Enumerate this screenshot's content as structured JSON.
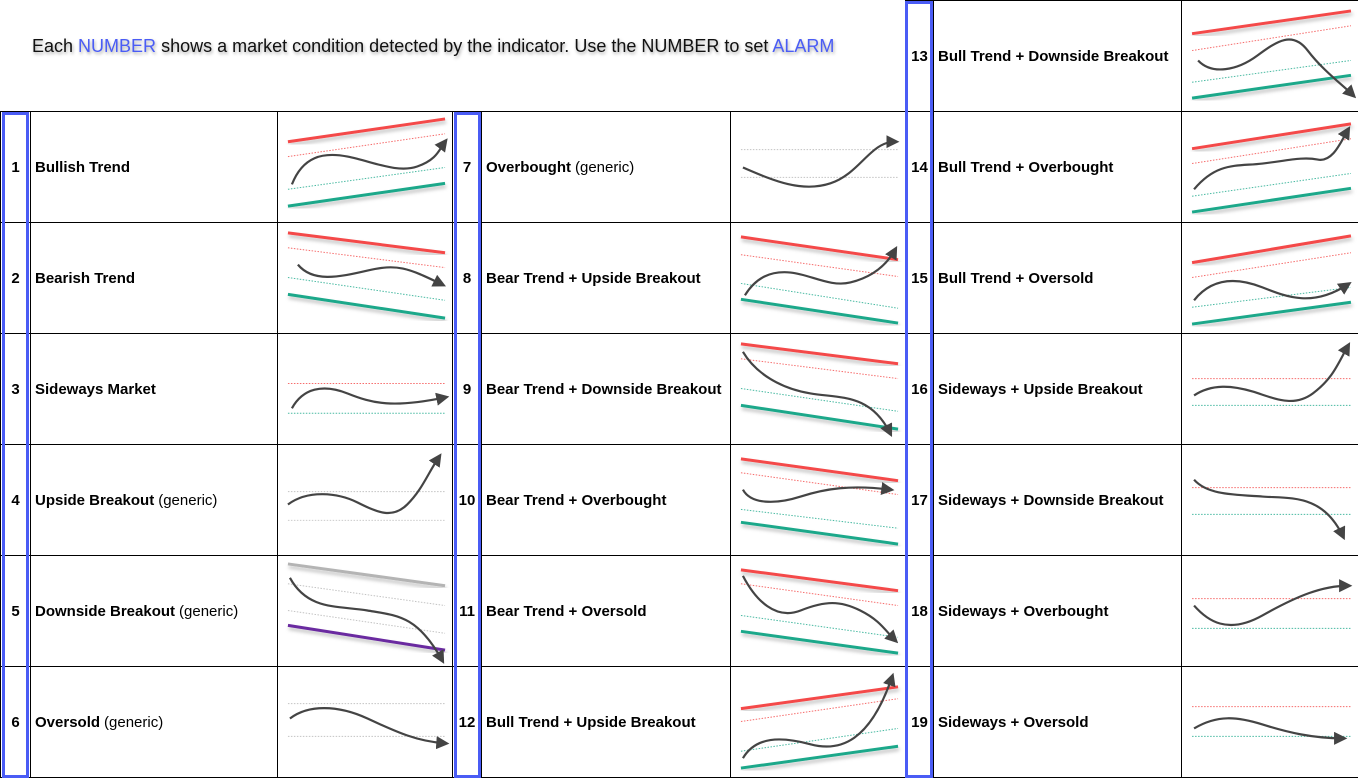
{
  "header": {
    "part1": "Each",
    "number_word": "NUMBER",
    "part2": "shows a market condition detected by the indicator. Use the NUMBER to set",
    "alarm_word": "ALARM"
  },
  "colors": {
    "highlight": "#4a5cf5",
    "resistance": "#f44848",
    "support": "#1aa88a",
    "generic": "#6a2aa0",
    "neutral": "#b4b4b4",
    "price": "#444444"
  },
  "conditions": [
    {
      "num": "1",
      "label": "Bullish Trend",
      "note": ""
    },
    {
      "num": "2",
      "label": "Bearish Trend",
      "note": ""
    },
    {
      "num": "3",
      "label": "Sideways Market",
      "note": ""
    },
    {
      "num": "4",
      "label": "Upside Breakout",
      "note": "(generic)"
    },
    {
      "num": "5",
      "label": "Downside Breakout",
      "note": "(generic)"
    },
    {
      "num": "6",
      "label": "Oversold",
      "note": "(generic)"
    },
    {
      "num": "7",
      "label": "Overbought",
      "note": "(generic)"
    },
    {
      "num": "8",
      "label": "Bear Trend + Upside Breakout",
      "note": ""
    },
    {
      "num": "9",
      "label": "Bear Trend + Downside Breakout",
      "note": ""
    },
    {
      "num": "10",
      "label": "Bear Trend + Overbought",
      "note": ""
    },
    {
      "num": "11",
      "label": "Bear Trend + Oversold",
      "note": ""
    },
    {
      "num": "12",
      "label": "Bull Trend + Upside Breakout",
      "note": ""
    },
    {
      "num": "13",
      "label": "Bull Trend + Downside Breakout",
      "note": ""
    },
    {
      "num": "14",
      "label": "Bull Trend + Overbought",
      "note": ""
    },
    {
      "num": "15",
      "label": "Bull Trend + Oversold",
      "note": ""
    },
    {
      "num": "16",
      "label": "Sideways + Upside Breakout",
      "note": ""
    },
    {
      "num": "17",
      "label": "Sideways + Downside Breakout",
      "note": ""
    },
    {
      "num": "18",
      "label": "Sideways + Overbought",
      "note": ""
    },
    {
      "num": "19",
      "label": "Sideways + Oversold",
      "note": ""
    }
  ]
}
